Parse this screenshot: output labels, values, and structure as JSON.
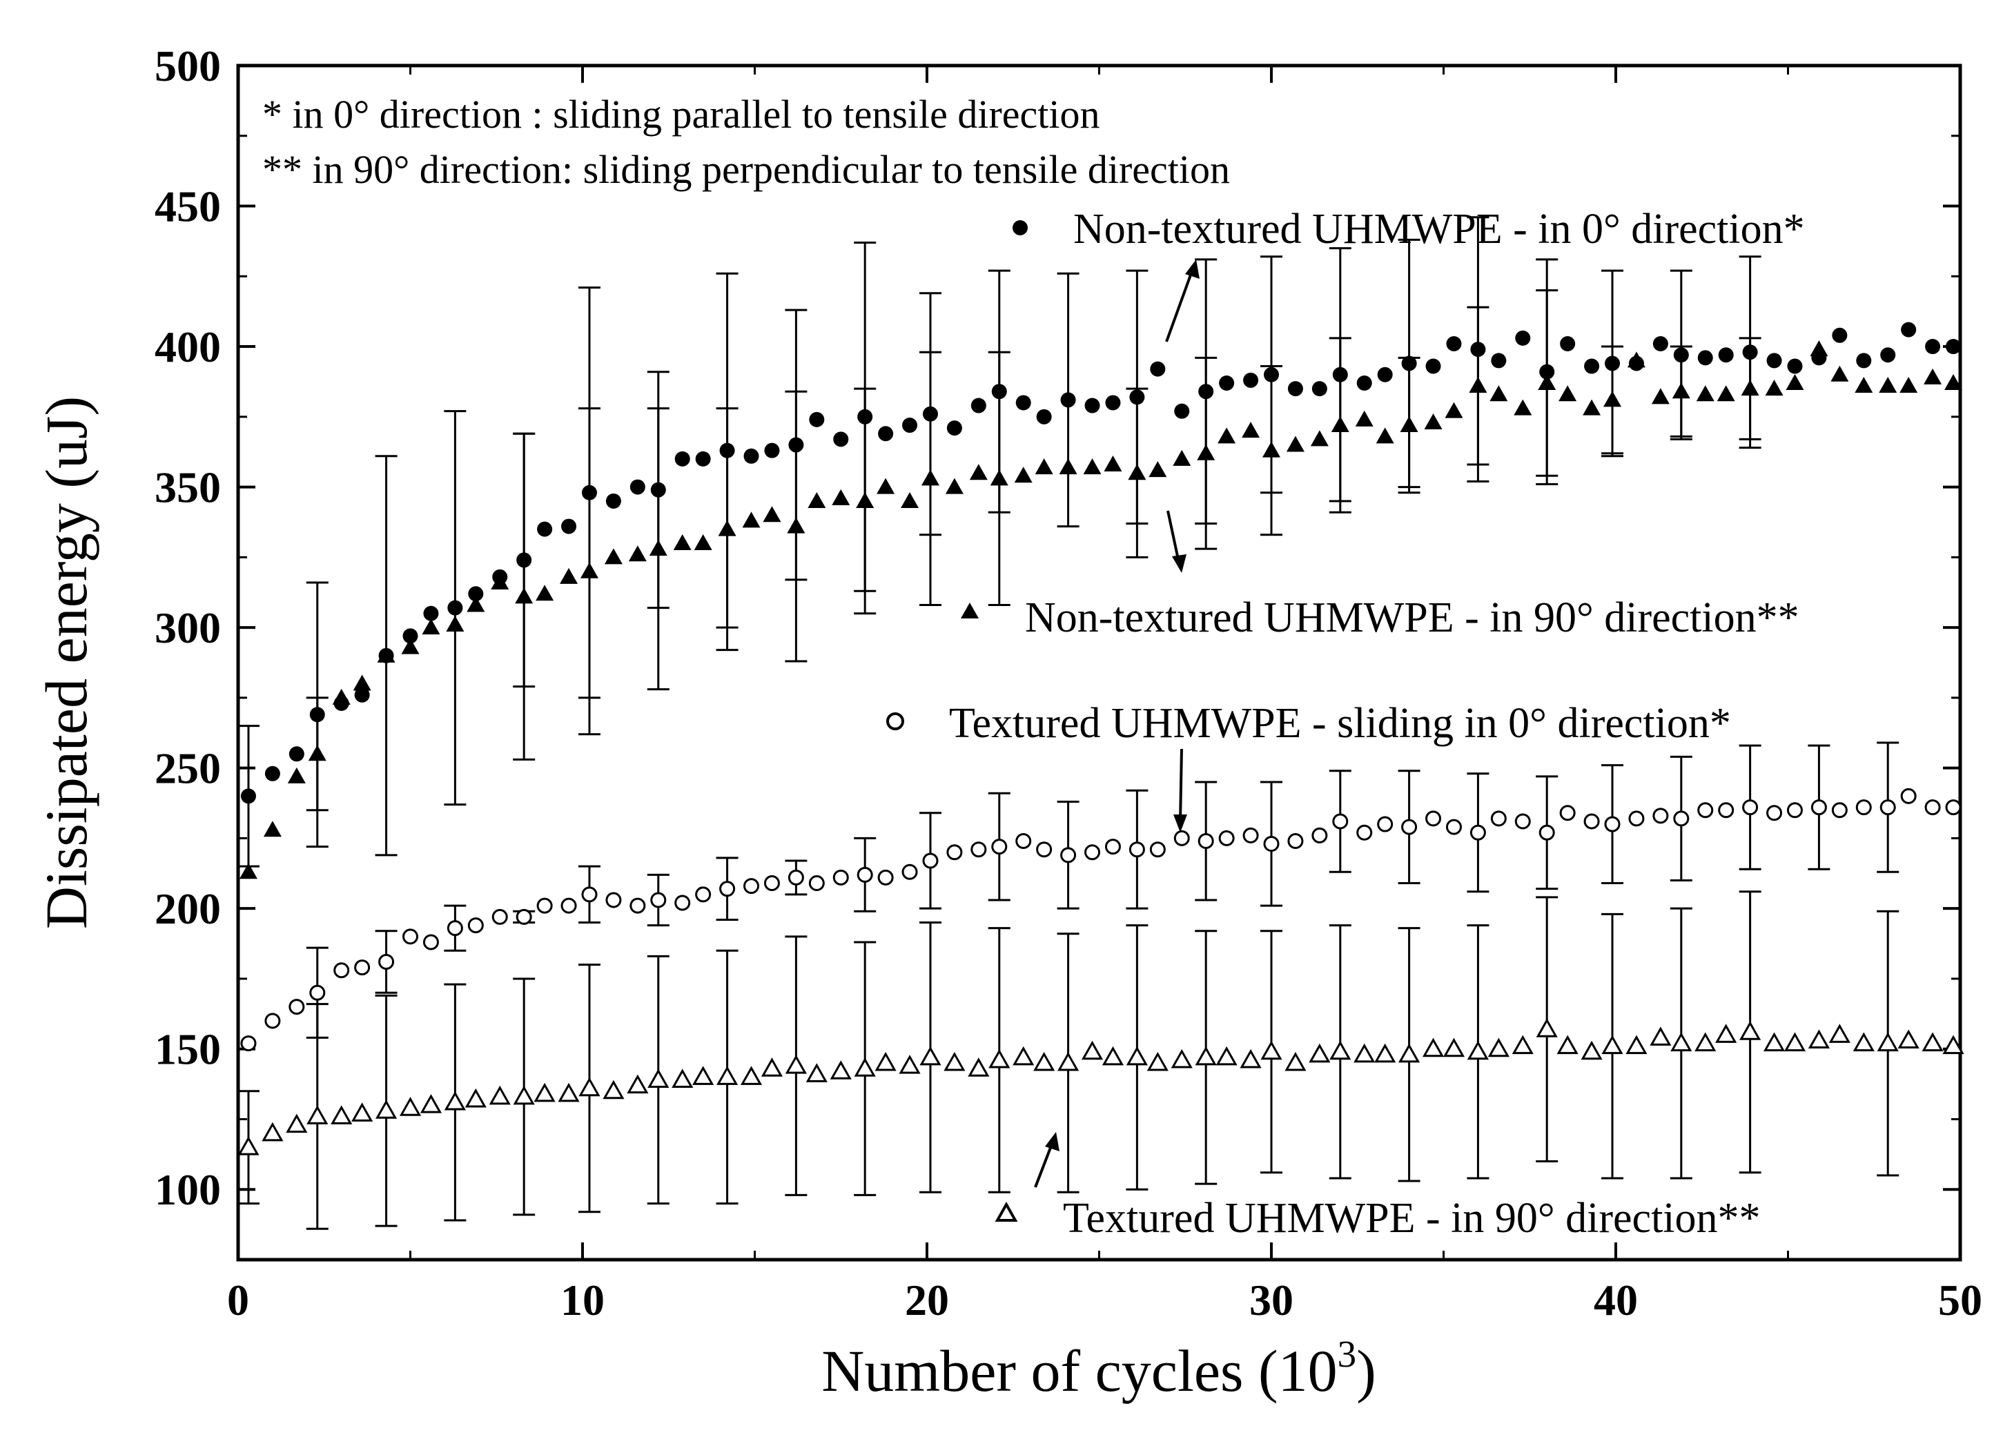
{
  "chart_data": {
    "type": "scatter",
    "title": "",
    "xlabel": "Number of cycles (10",
    "xlabel_sup": "3",
    "xlabel_end": ")",
    "ylabel": "Dissipated energy (uJ)",
    "xlim": [
      0,
      50
    ],
    "ylim": [
      75,
      500
    ],
    "xticks": [
      0,
      10,
      20,
      30,
      40,
      50
    ],
    "yticks": [
      100,
      150,
      200,
      250,
      300,
      350,
      400,
      450,
      500
    ],
    "grid": false,
    "notes": [
      "*  in 0° direction : sliding parallel to tensile direction",
      "** in 90° direction: sliding perpendicular to tensile direction"
    ],
    "series": [
      {
        "name": "Non-textured UHMWPE - in 0° direction*",
        "marker": "filled-circle",
        "x": [
          0.3,
          1.0,
          1.7,
          2.3,
          3.0,
          3.6,
          4.3,
          5.0,
          5.6,
          6.3,
          6.9,
          7.6,
          8.3,
          8.9,
          9.6,
          10.2,
          10.9,
          11.6,
          12.2,
          12.9,
          13.5,
          14.2,
          14.9,
          15.5,
          16.2,
          16.8,
          17.5,
          18.2,
          18.8,
          19.5,
          20.1,
          20.8,
          21.5,
          22.1,
          22.8,
          23.4,
          24.1,
          24.8,
          25.4,
          26.1,
          26.7,
          27.4,
          28.1,
          28.7,
          29.4,
          30.0,
          30.7,
          31.4,
          32.0,
          32.7,
          33.3,
          34.0,
          34.7,
          35.3,
          36.0,
          36.6,
          37.3,
          38.0,
          38.6,
          39.3,
          39.9,
          40.6,
          41.3,
          41.9,
          42.6,
          43.2,
          43.9,
          44.6,
          45.2,
          45.9,
          46.5,
          47.2,
          47.9,
          48.5,
          49.2,
          49.8
        ],
        "y": [
          240,
          248,
          255,
          269,
          273,
          276,
          290,
          297,
          305,
          307,
          312,
          318,
          324,
          335,
          336,
          348,
          345,
          350,
          349,
          360,
          360,
          363,
          361,
          363,
          365,
          374,
          367,
          375,
          369,
          372,
          376,
          371,
          379,
          384,
          380,
          375,
          381,
          379,
          380,
          382,
          392,
          377,
          384,
          387,
          388,
          390,
          385,
          385,
          390,
          387,
          390,
          394,
          393,
          401,
          399,
          395,
          403,
          391,
          401,
          393,
          394,
          394,
          401,
          397,
          396,
          397,
          398,
          395,
          393,
          396,
          404,
          395,
          397,
          406,
          400,
          400
        ],
        "err": [
          25,
          0,
          0,
          47,
          0,
          0,
          71,
          0,
          0,
          70,
          0,
          0,
          45,
          0,
          0,
          73,
          0,
          0,
          42,
          0,
          0,
          63,
          0,
          0,
          48,
          0,
          0,
          62,
          0,
          0,
          43,
          0,
          0,
          43,
          0,
          0,
          45,
          0,
          0,
          45,
          0,
          0,
          47,
          0,
          0,
          42,
          0,
          0,
          45,
          0,
          0,
          44,
          0,
          0,
          47,
          0,
          0,
          40,
          0,
          0,
          33,
          0,
          0,
          30,
          0,
          0,
          34,
          0,
          0,
          0,
          0,
          0,
          0,
          0,
          0,
          0
        ]
      },
      {
        "name": "Non-textured UHMWPE - in 90° direction**",
        "marker": "filled-triangle",
        "x": [
          0.3,
          1.0,
          1.7,
          2.3,
          3.0,
          3.6,
          4.3,
          5.0,
          5.6,
          6.3,
          6.9,
          7.6,
          8.3,
          8.9,
          9.6,
          10.2,
          10.9,
          11.6,
          12.2,
          12.9,
          13.5,
          14.2,
          14.9,
          15.5,
          16.2,
          16.8,
          17.5,
          18.2,
          18.8,
          19.5,
          20.1,
          20.8,
          21.5,
          22.1,
          22.8,
          23.4,
          24.1,
          24.8,
          25.4,
          26.1,
          26.7,
          27.4,
          28.1,
          28.7,
          29.4,
          30.0,
          30.7,
          31.4,
          32.0,
          32.7,
          33.3,
          34.0,
          34.7,
          35.3,
          36.0,
          36.6,
          37.3,
          38.0,
          38.6,
          39.3,
          39.9,
          40.6,
          41.3,
          41.9,
          42.6,
          43.2,
          43.9,
          44.6,
          45.2,
          45.9,
          46.5,
          47.2,
          47.9,
          48.5,
          49.2,
          49.8
        ],
        "y": [
          213,
          228,
          247,
          255,
          275,
          280,
          290,
          293,
          300,
          301,
          308,
          316,
          311,
          312,
          318,
          320,
          325,
          326,
          328,
          330,
          330,
          335,
          338,
          340,
          336,
          345,
          346,
          345,
          350,
          345,
          353,
          350,
          355,
          353,
          354,
          357,
          357,
          357,
          358,
          355,
          356,
          360,
          362,
          368,
          370,
          363,
          365,
          367,
          372,
          374,
          368,
          372,
          373,
          377,
          386,
          383,
          378,
          387,
          383,
          378,
          381,
          395,
          382,
          384,
          383,
          383,
          385,
          385,
          387,
          399,
          390,
          386,
          386,
          386,
          389,
          387
        ],
        "err": [
          0,
          0,
          0,
          20,
          0,
          0,
          0,
          0,
          0,
          0,
          0,
          0,
          58,
          0,
          0,
          58,
          0,
          0,
          50,
          0,
          0,
          43,
          0,
          0,
          48,
          0,
          0,
          40,
          0,
          0,
          45,
          0,
          0,
          45,
          0,
          0,
          0,
          0,
          0,
          30,
          0,
          0,
          34,
          0,
          0,
          30,
          0,
          0,
          31,
          0,
          0,
          24,
          0,
          0,
          28,
          0,
          0,
          33,
          0,
          0,
          19,
          0,
          0,
          16,
          0,
          0,
          18,
          0,
          0,
          0,
          0,
          0,
          0,
          0,
          0,
          0
        ]
      },
      {
        "name": "Textured UHMWPE - sliding in 0° direction*",
        "marker": "open-circle",
        "x": [
          0.3,
          1.0,
          1.7,
          2.3,
          3.0,
          3.6,
          4.3,
          5.0,
          5.6,
          6.3,
          6.9,
          7.6,
          8.3,
          8.9,
          9.6,
          10.2,
          10.9,
          11.6,
          12.2,
          12.9,
          13.5,
          14.2,
          14.9,
          15.5,
          16.2,
          16.8,
          17.5,
          18.2,
          18.8,
          19.5,
          20.1,
          20.8,
          21.5,
          22.1,
          22.8,
          23.4,
          24.1,
          24.8,
          25.4,
          26.1,
          26.7,
          27.4,
          28.1,
          28.7,
          29.4,
          30.0,
          30.7,
          31.4,
          32.0,
          32.7,
          33.3,
          34.0,
          34.7,
          35.3,
          36.0,
          36.6,
          37.3,
          38.0,
          38.6,
          39.3,
          39.9,
          40.6,
          41.3,
          41.9,
          42.6,
          43.2,
          43.9,
          44.6,
          45.2,
          45.9,
          46.5,
          47.2,
          47.9,
          48.5,
          49.2,
          49.8
        ],
        "y": [
          152,
          160,
          165,
          170,
          178,
          179,
          181,
          190,
          188,
          193,
          194,
          197,
          197,
          201,
          201,
          205,
          203,
          201,
          203,
          202,
          205,
          207,
          208,
          209,
          211,
          209,
          211,
          212,
          211,
          213,
          217,
          220,
          221,
          222,
          224,
          221,
          219,
          220,
          222,
          221,
          221,
          225,
          224,
          225,
          226,
          223,
          224,
          226,
          231,
          227,
          230,
          229,
          232,
          229,
          227,
          232,
          231,
          227,
          234,
          231,
          230,
          232,
          233,
          232,
          235,
          235,
          236,
          234,
          235,
          236,
          235,
          236,
          236,
          240,
          236,
          236
        ],
        "err": [
          0,
          0,
          0,
          16,
          0,
          0,
          11,
          0,
          0,
          8,
          0,
          0,
          2,
          0,
          0,
          10,
          0,
          0,
          9,
          0,
          0,
          11,
          0,
          0,
          6,
          0,
          0,
          13,
          0,
          0,
          17,
          0,
          0,
          19,
          0,
          0,
          19,
          0,
          0,
          21,
          0,
          0,
          21,
          0,
          0,
          22,
          0,
          0,
          18,
          0,
          0,
          20,
          0,
          0,
          21,
          0,
          0,
          20,
          0,
          0,
          21,
          0,
          0,
          22,
          0,
          0,
          22,
          0,
          0,
          22,
          0,
          0,
          23,
          0,
          0,
          0
        ]
      },
      {
        "name": "Textured UHMWPE - in 90° direction**",
        "marker": "open-triangle",
        "x": [
          0.3,
          1.0,
          1.7,
          2.3,
          3.0,
          3.6,
          4.3,
          5.0,
          5.6,
          6.3,
          6.9,
          7.6,
          8.3,
          8.9,
          9.6,
          10.2,
          10.9,
          11.6,
          12.2,
          12.9,
          13.5,
          14.2,
          14.9,
          15.5,
          16.2,
          16.8,
          17.5,
          18.2,
          18.8,
          19.5,
          20.1,
          20.8,
          21.5,
          22.1,
          22.8,
          23.4,
          24.1,
          24.8,
          25.4,
          26.1,
          26.7,
          27.4,
          28.1,
          28.7,
          29.4,
          30.0,
          30.7,
          31.4,
          32.0,
          32.7,
          33.3,
          34.0,
          34.7,
          35.3,
          36.0,
          36.6,
          37.3,
          38.0,
          38.6,
          39.3,
          39.9,
          40.6,
          41.3,
          41.9,
          42.6,
          43.2,
          43.9,
          44.6,
          45.2,
          45.9,
          46.5,
          47.2,
          47.9,
          48.5,
          49.2,
          49.8
        ],
        "y": [
          115,
          120,
          123,
          126,
          126,
          127,
          128,
          129,
          130,
          131,
          132,
          133,
          133,
          134,
          134,
          136,
          135,
          137,
          139,
          139,
          140,
          140,
          140,
          143,
          144,
          141,
          142,
          143,
          145,
          144,
          147,
          145,
          143,
          146,
          147,
          145,
          145,
          149,
          147,
          147,
          145,
          146,
          147,
          147,
          146,
          149,
          145,
          148,
          149,
          148,
          148,
          148,
          150,
          150,
          149,
          150,
          151,
          157,
          151,
          149,
          151,
          151,
          154,
          152,
          152,
          155,
          156,
          152,
          152,
          153,
          155,
          152,
          152,
          153,
          152,
          151
        ],
        "err": [
          20,
          0,
          0,
          40,
          0,
          0,
          41,
          0,
          0,
          42,
          0,
          0,
          42,
          0,
          0,
          44,
          0,
          0,
          44,
          0,
          0,
          45,
          0,
          0,
          46,
          0,
          0,
          45,
          0,
          0,
          48,
          0,
          0,
          47,
          0,
          0,
          46,
          0,
          0,
          47,
          0,
          0,
          45,
          0,
          0,
          43,
          0,
          0,
          45,
          0,
          0,
          45,
          0,
          0,
          45,
          0,
          0,
          47,
          0,
          0,
          47,
          0,
          0,
          48,
          0,
          0,
          50,
          0,
          0,
          0,
          0,
          0,
          47,
          0,
          0,
          0
        ]
      }
    ]
  }
}
